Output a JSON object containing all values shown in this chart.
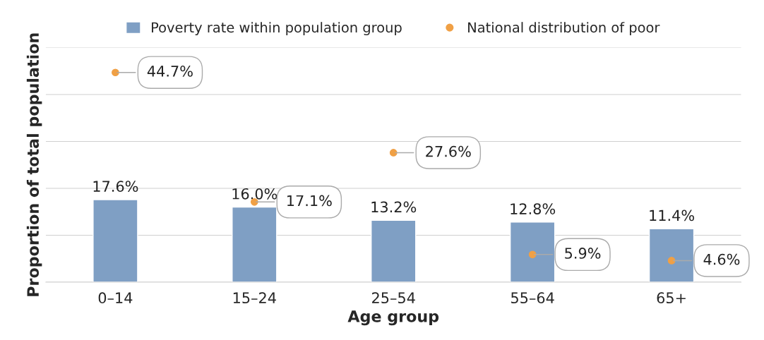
{
  "chart_data": {
    "type": "bar",
    "xlabel": "Age group",
    "ylabel": "Proportion of total population",
    "categories": [
      "0–14",
      "15–24",
      "25–54",
      "55–64",
      "65+"
    ],
    "series": [
      {
        "name": "Poverty rate within population group",
        "color": "#7f9fc4",
        "values": [
          17.6,
          16.0,
          13.2,
          12.8,
          11.4
        ],
        "value_labels": [
          "17.6%",
          "16.0%",
          "13.2%",
          "12.8%",
          "11.4%"
        ]
      },
      {
        "name": "National distribution of poor",
        "type": "scatter",
        "color": "#f0a045",
        "values": [
          44.7,
          17.1,
          27.6,
          5.9,
          4.6
        ],
        "value_labels": [
          "44.7%",
          "17.1%",
          "27.6%",
          "5.9%",
          "4.6%"
        ]
      }
    ],
    "ylim": [
      0,
      50
    ],
    "yticks": [
      {
        "value": 0,
        "label": null
      },
      {
        "value": 10,
        "label": null
      },
      {
        "value": 20,
        "label": null
      },
      {
        "value": 30,
        "label": null
      },
      {
        "value": 40,
        "label": null
      },
      {
        "value": 50,
        "label": null
      }
    ],
    "tick_labels": "x",
    "grid": "y",
    "legend": "top",
    "marker": "circle"
  }
}
